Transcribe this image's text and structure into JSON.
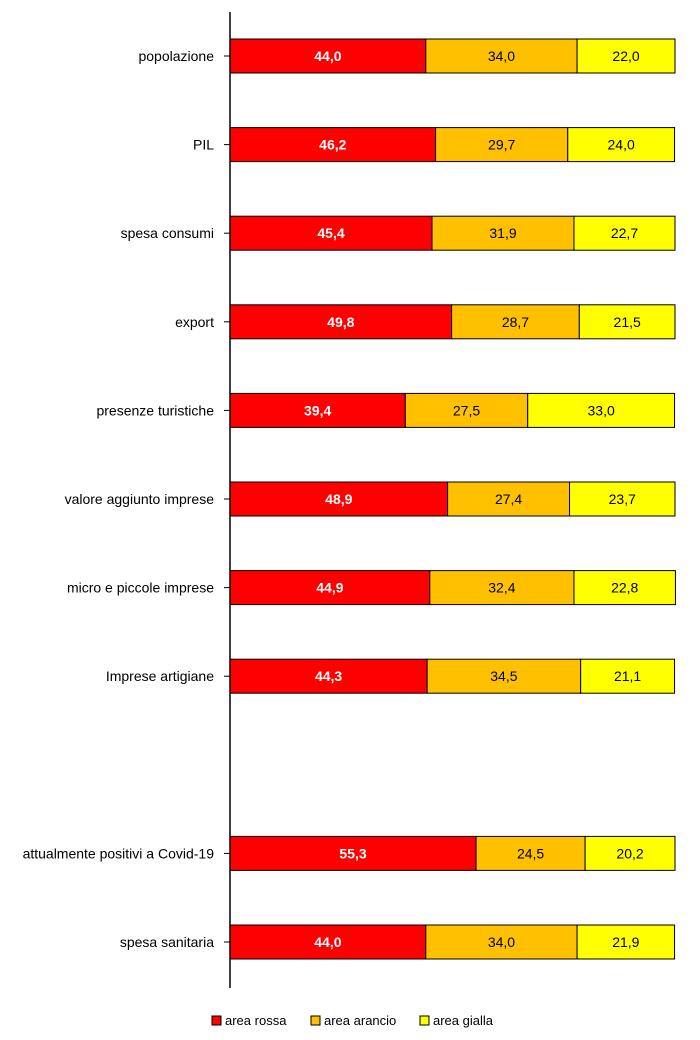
{
  "chart_data": {
    "type": "bar",
    "orientation": "horizontal",
    "stacked": true,
    "categories": [
      "popolazione",
      "PIL",
      "spesa consumi",
      "export",
      "presenze turistiche",
      "valore aggiunto imprese",
      "micro e piccole imprese",
      "Imprese artigiane",
      "",
      "attualmente positivi a Covid-19",
      "spesa sanitaria"
    ],
    "series": [
      {
        "name": "area rossa",
        "color": "#ff0000",
        "values": [
          44.0,
          46.2,
          45.4,
          49.8,
          39.4,
          48.9,
          44.9,
          44.3,
          null,
          55.3,
          44.0
        ],
        "labels": [
          "44,0",
          "46,2",
          "45,4",
          "49,8",
          "39,4",
          "48,9",
          "44,9",
          "44,3",
          "",
          "55,3",
          "44,0"
        ]
      },
      {
        "name": "area arancio",
        "color": "#ffc000",
        "values": [
          34.0,
          29.7,
          31.9,
          28.7,
          27.5,
          27.4,
          32.4,
          34.5,
          null,
          24.5,
          34.0
        ],
        "labels": [
          "34,0",
          "29,7",
          "31,9",
          "28,7",
          "27,5",
          "27,4",
          "32,4",
          "34,5",
          "",
          "24,5",
          "34,0"
        ]
      },
      {
        "name": "area gialla",
        "color": "#ffff00",
        "values": [
          22.0,
          24.0,
          22.7,
          21.5,
          33.0,
          23.7,
          22.8,
          21.1,
          null,
          20.2,
          21.9
        ],
        "labels": [
          "22,0",
          "24,0",
          "22,7",
          "21,5",
          "33,0",
          "23,7",
          "22,8",
          "21,1",
          "",
          "20,2",
          "21,9"
        ]
      }
    ],
    "xlim": [
      0,
      100
    ],
    "grid": false,
    "legend_position": "bottom",
    "title": "",
    "xlabel": "",
    "ylabel": ""
  }
}
